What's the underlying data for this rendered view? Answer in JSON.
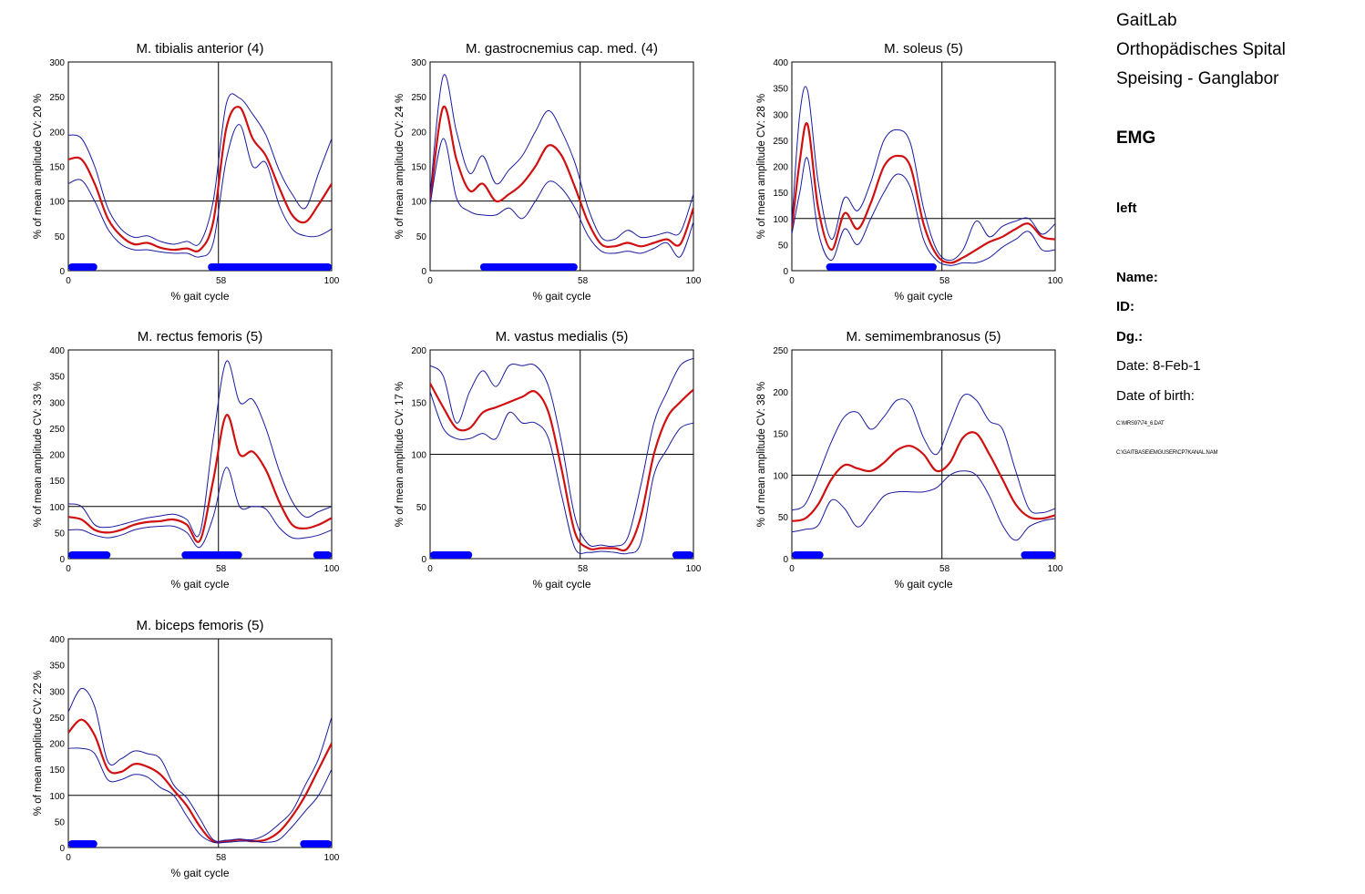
{
  "header": {
    "lab": "GaitLab",
    "institution": "Orthopädisches Spital",
    "department": "Speising - Ganglabor",
    "section": "EMG",
    "side": "left",
    "name_label": "Name:",
    "id_label": "ID:",
    "dg_label": "Dg.:",
    "date_label": "Date: 8-Feb-1",
    "dob_label": "Date of birth:",
    "file1": "C:\\MRS97\\74_6.DAT",
    "file2": "C:\\GAITBASE\\EMGUSER\\CP7KANAL.NAM"
  },
  "colors": {
    "mean": "#d01010",
    "band": "#1a1aa0",
    "activity": "#0000ff",
    "axis": "#000000"
  },
  "chart_data": [
    {
      "type": "line",
      "title": "M. tibialis anterior (4)",
      "ylabel": "% of mean amplitude  CV: 20 %",
      "xlabel": "% gait cycle",
      "xlim": [
        0,
        100
      ],
      "ylim": [
        0,
        300
      ],
      "yticks": [
        0,
        50,
        100,
        150,
        200,
        250,
        300
      ],
      "xticks": [
        0,
        58,
        100
      ],
      "reference_x": 57,
      "reference_y": 100,
      "x": [
        0,
        5,
        10,
        15,
        20,
        25,
        30,
        35,
        40,
        45,
        50,
        55,
        60,
        65,
        70,
        75,
        80,
        85,
        90,
        95,
        100
      ],
      "series": [
        {
          "role": "mean",
          "values": [
            160,
            160,
            125,
            75,
            50,
            38,
            40,
            33,
            30,
            32,
            30,
            70,
            205,
            235,
            190,
            165,
            120,
            80,
            70,
            95,
            125
          ]
        },
        {
          "role": "upper",
          "values": [
            195,
            190,
            150,
            90,
            60,
            48,
            50,
            42,
            38,
            42,
            40,
            100,
            240,
            248,
            225,
            195,
            145,
            110,
            90,
            140,
            190
          ]
        },
        {
          "role": "lower",
          "values": [
            125,
            130,
            100,
            60,
            38,
            30,
            30,
            27,
            25,
            25,
            20,
            40,
            160,
            210,
            150,
            155,
            95,
            60,
            50,
            50,
            60
          ]
        }
      ],
      "activity": [
        [
          0,
          11
        ],
        [
          53,
          100
        ]
      ]
    },
    {
      "type": "line",
      "title": "M. gastrocnemius cap. med. (4)",
      "ylabel": "% of mean amplitude  CV: 24 %",
      "xlabel": "% gait cycle",
      "xlim": [
        0,
        100
      ],
      "ylim": [
        0,
        300
      ],
      "yticks": [
        0,
        50,
        100,
        150,
        200,
        250,
        300
      ],
      "xticks": [
        0,
        58,
        100
      ],
      "reference_x": 57,
      "reference_y": 100,
      "x": [
        0,
        5,
        10,
        15,
        20,
        25,
        30,
        35,
        40,
        45,
        50,
        55,
        60,
        65,
        70,
        75,
        80,
        85,
        90,
        95,
        100
      ],
      "series": [
        {
          "role": "mean",
          "values": [
            100,
            235,
            160,
            115,
            125,
            100,
            110,
            125,
            150,
            180,
            165,
            120,
            70,
            38,
            35,
            40,
            35,
            40,
            45,
            38,
            90
          ]
        },
        {
          "role": "upper",
          "values": [
            110,
            280,
            200,
            140,
            165,
            125,
            145,
            165,
            200,
            230,
            200,
            155,
            90,
            48,
            45,
            58,
            48,
            50,
            55,
            55,
            110
          ]
        },
        {
          "role": "lower",
          "values": [
            95,
            190,
            105,
            85,
            80,
            80,
            90,
            75,
            100,
            128,
            118,
            90,
            50,
            28,
            25,
            28,
            25,
            32,
            40,
            20,
            70
          ]
        }
      ],
      "activity": [
        [
          19,
          56
        ]
      ]
    },
    {
      "type": "line",
      "title": "M. soleus (5)",
      "ylabel": "% of mean amplitude  CV: 28 %",
      "xlabel": "% gait cycle",
      "xlim": [
        0,
        100
      ],
      "ylim": [
        0,
        400
      ],
      "yticks": [
        0,
        50,
        100,
        150,
        200,
        250,
        300,
        350,
        400
      ],
      "xticks": [
        0,
        58,
        100
      ],
      "reference_x": 57,
      "reference_y": 100,
      "x": [
        0,
        3,
        6,
        10,
        15,
        20,
        25,
        30,
        35,
        40,
        45,
        50,
        55,
        60,
        65,
        70,
        75,
        80,
        85,
        90,
        95,
        100
      ],
      "series": [
        {
          "role": "mean",
          "values": [
            80,
            210,
            280,
            120,
            40,
            110,
            80,
            130,
            200,
            220,
            200,
            90,
            30,
            15,
            25,
            40,
            55,
            65,
            80,
            90,
            65,
            60
          ]
        },
        {
          "role": "upper",
          "values": [
            90,
            300,
            345,
            170,
            60,
            140,
            115,
            170,
            250,
            270,
            245,
            120,
            40,
            20,
            40,
            95,
            65,
            85,
            95,
            100,
            70,
            90
          ]
        },
        {
          "role": "lower",
          "values": [
            70,
            150,
            215,
            75,
            20,
            80,
            50,
            100,
            150,
            185,
            160,
            60,
            20,
            10,
            15,
            15,
            25,
            45,
            60,
            75,
            40,
            40
          ]
        }
      ],
      "activity": [
        [
          13,
          55
        ]
      ]
    },
    {
      "type": "line",
      "title": "M. rectus femoris (5)",
      "ylabel": "% of mean amplitude  CV: 33 %",
      "xlabel": "% gait cycle",
      "xlim": [
        0,
        100
      ],
      "ylim": [
        0,
        400
      ],
      "yticks": [
        0,
        50,
        100,
        150,
        200,
        250,
        300,
        350,
        400
      ],
      "xticks": [
        0,
        58,
        100
      ],
      "reference_x": 57,
      "reference_y": 100,
      "x": [
        0,
        5,
        10,
        15,
        20,
        25,
        30,
        35,
        40,
        45,
        50,
        55,
        60,
        65,
        70,
        75,
        80,
        85,
        90,
        95,
        100
      ],
      "series": [
        {
          "role": "mean",
          "values": [
            80,
            75,
            55,
            50,
            55,
            65,
            70,
            72,
            75,
            65,
            35,
            150,
            275,
            200,
            205,
            170,
            110,
            65,
            58,
            65,
            78
          ]
        },
        {
          "role": "upper",
          "values": [
            105,
            100,
            65,
            60,
            65,
            72,
            78,
            82,
            85,
            75,
            50,
            230,
            378,
            300,
            305,
            250,
            170,
            110,
            80,
            90,
            100
          ]
        },
        {
          "role": "lower",
          "values": [
            55,
            55,
            45,
            40,
            45,
            55,
            60,
            62,
            62,
            50,
            22,
            80,
            175,
            100,
            100,
            95,
            60,
            40,
            40,
            45,
            55
          ]
        }
      ],
      "activity": [
        [
          0,
          16
        ],
        [
          43,
          66
        ],
        [
          93,
          100
        ]
      ]
    },
    {
      "type": "line",
      "title": "M. vastus medialis (5)",
      "ylabel": "% of mean amplitude  CV: 17 %",
      "xlabel": "% gait cycle",
      "xlim": [
        0,
        100
      ],
      "ylim": [
        0,
        200
      ],
      "yticks": [
        0,
        50,
        100,
        150,
        200
      ],
      "xticks": [
        0,
        58,
        100
      ],
      "reference_x": 57,
      "reference_y": 100,
      "x": [
        0,
        5,
        10,
        15,
        20,
        25,
        30,
        35,
        40,
        45,
        50,
        55,
        60,
        65,
        70,
        75,
        80,
        85,
        90,
        95,
        100
      ],
      "series": [
        {
          "role": "mean",
          "values": [
            168,
            145,
            125,
            125,
            140,
            145,
            150,
            155,
            160,
            140,
            85,
            25,
            10,
            10,
            10,
            10,
            40,
            100,
            135,
            150,
            162
          ]
        },
        {
          "role": "upper",
          "values": [
            185,
            175,
            130,
            160,
            180,
            165,
            185,
            185,
            185,
            165,
            110,
            40,
            14,
            13,
            12,
            20,
            70,
            130,
            160,
            185,
            192
          ]
        },
        {
          "role": "lower",
          "values": [
            160,
            125,
            115,
            115,
            120,
            115,
            140,
            130,
            130,
            115,
            60,
            10,
            6,
            7,
            6,
            5,
            15,
            80,
            105,
            125,
            130
          ]
        }
      ],
      "activity": [
        [
          0,
          16
        ],
        [
          92,
          100
        ]
      ]
    },
    {
      "type": "line",
      "title": "M. semimembranosus (5)",
      "ylabel": "% of mean amplitude  CV: 38 %",
      "xlabel": "% gait cycle",
      "xlim": [
        0,
        100
      ],
      "ylim": [
        0,
        250
      ],
      "yticks": [
        0,
        50,
        100,
        150,
        200,
        250
      ],
      "xticks": [
        0,
        58,
        100
      ],
      "reference_x": 57,
      "reference_y": 100,
      "x": [
        0,
        5,
        10,
        15,
        20,
        25,
        30,
        35,
        40,
        45,
        50,
        55,
        60,
        65,
        70,
        75,
        80,
        85,
        90,
        95,
        100
      ],
      "series": [
        {
          "role": "mean",
          "values": [
            45,
            48,
            65,
            95,
            112,
            108,
            105,
            115,
            130,
            135,
            125,
            105,
            115,
            145,
            150,
            125,
            95,
            65,
            50,
            48,
            52
          ]
        },
        {
          "role": "upper",
          "values": [
            58,
            65,
            100,
            140,
            170,
            175,
            155,
            170,
            190,
            185,
            145,
            125,
            160,
            195,
            190,
            165,
            155,
            105,
            60,
            55,
            60
          ]
        },
        {
          "role": "lower",
          "values": [
            32,
            35,
            40,
            70,
            60,
            38,
            55,
            75,
            80,
            80,
            80,
            85,
            100,
            105,
            100,
            75,
            40,
            22,
            38,
            45,
            48
          ]
        }
      ],
      "activity": [
        [
          0,
          12
        ],
        [
          87,
          100
        ]
      ]
    },
    {
      "type": "line",
      "title": "M. biceps femoris (5)",
      "ylabel": "% of mean amplitude  CV: 22 %",
      "xlabel": "% gait cycle",
      "xlim": [
        0,
        100
      ],
      "ylim": [
        0,
        400
      ],
      "yticks": [
        0,
        50,
        100,
        150,
        200,
        250,
        300,
        350,
        400
      ],
      "xticks": [
        0,
        58,
        100
      ],
      "reference_x": 57,
      "reference_y": 100,
      "x": [
        0,
        5,
        10,
        15,
        20,
        25,
        30,
        35,
        40,
        45,
        50,
        55,
        60,
        65,
        70,
        75,
        80,
        85,
        90,
        95,
        100
      ],
      "series": [
        {
          "role": "mean",
          "values": [
            220,
            245,
            215,
            150,
            145,
            160,
            155,
            140,
            110,
            80,
            40,
            12,
            12,
            15,
            12,
            15,
            30,
            60,
            100,
            150,
            200
          ]
        },
        {
          "role": "upper",
          "values": [
            260,
            305,
            270,
            165,
            170,
            185,
            180,
            170,
            120,
            95,
            55,
            15,
            14,
            16,
            15,
            25,
            45,
            70,
            120,
            170,
            250
          ]
        },
        {
          "role": "lower",
          "values": [
            190,
            190,
            180,
            130,
            130,
            140,
            135,
            115,
            100,
            60,
            25,
            10,
            10,
            12,
            12,
            10,
            15,
            40,
            70,
            100,
            150
          ]
        }
      ],
      "activity": [
        [
          0,
          11
        ],
        [
          88,
          100
        ]
      ]
    }
  ]
}
